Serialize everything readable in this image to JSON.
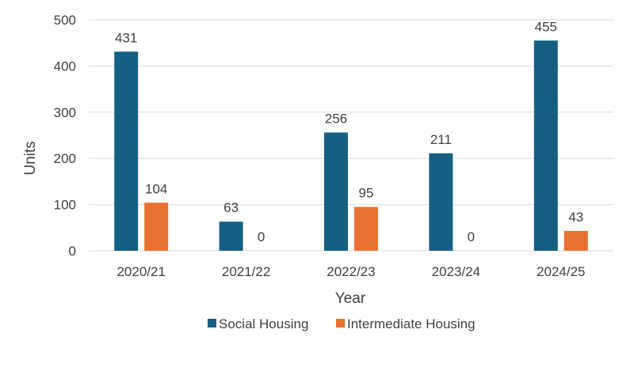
{
  "chart_data": {
    "type": "bar",
    "title": "",
    "xlabel": "Year",
    "ylabel": "Units",
    "ylim": [
      0,
      500
    ],
    "yticks": [
      0,
      100,
      200,
      300,
      400,
      500
    ],
    "categories": [
      "2020/21",
      "2021/22",
      "2022/23",
      "2023/24",
      "2024/25"
    ],
    "series": [
      {
        "name": "Social Housing",
        "color": "#156082",
        "values": [
          431,
          63,
          256,
          211,
          455
        ]
      },
      {
        "name": "Intermediate Housing",
        "color": "#E97132",
        "values": [
          104,
          0,
          95,
          0,
          43
        ]
      }
    ],
    "grid": true,
    "legend_position": "bottom",
    "data_labels": true
  }
}
